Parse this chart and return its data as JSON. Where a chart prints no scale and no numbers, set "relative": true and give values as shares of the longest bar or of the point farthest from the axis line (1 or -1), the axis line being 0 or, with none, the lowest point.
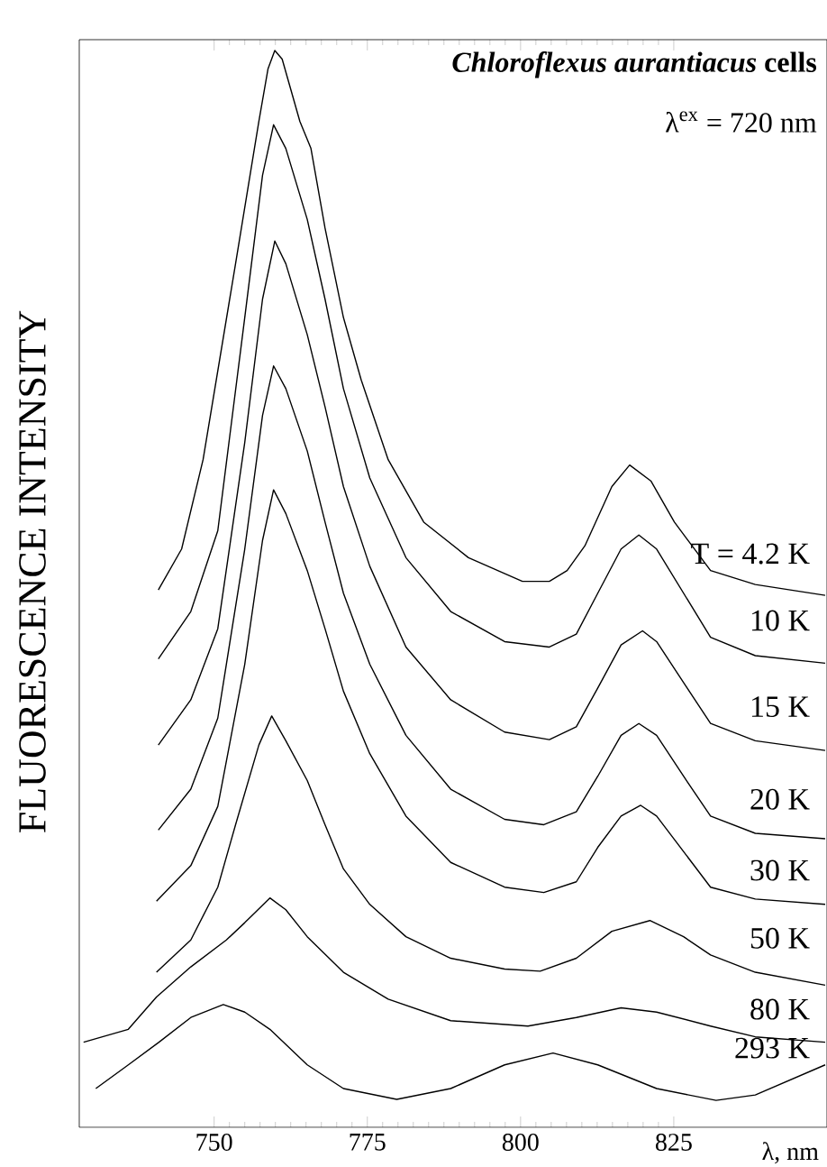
{
  "chart_data": {
    "type": "line",
    "relative": true,
    "xlabel": "λ, nm",
    "ylabel": "FLUORESCENCE INTENSITY",
    "xlim": [
      728,
      850
    ],
    "xticks": [
      750,
      775,
      800,
      825
    ],
    "annotations": [
      "*Chloroflexus aurantiacus* cells",
      "λ$^{ex}$ = 720 nm"
    ],
    "series": [
      {
        "name": "T = 4.2 K",
        "color": "#000000",
        "x": [
          740.9,
          744.7,
          748.2,
          753.5,
          757.3,
          758.8,
          759.9,
          761.1,
          764.0,
          765.8,
          768.1,
          771.1,
          774.0,
          778.4,
          784.2,
          791.5,
          800.3,
          804.7,
          807.6,
          810.5,
          814.9,
          817.8,
          821.3,
          825.1,
          831.0,
          838.3,
          849.7
        ],
        "values": [
          0.499,
          0.537,
          0.62,
          0.802,
          0.934,
          0.983,
          1.0,
          0.992,
          0.934,
          0.909,
          0.835,
          0.752,
          0.694,
          0.62,
          0.562,
          0.529,
          0.507,
          0.507,
          0.517,
          0.54,
          0.595,
          0.615,
          0.6,
          0.562,
          0.517,
          0.504,
          0.494
        ]
      },
      {
        "name": "10 K",
        "color": "#000000",
        "x": [
          740.9,
          746.2,
          750.6,
          755.0,
          757.9,
          759.7,
          761.7,
          765.2,
          768.1,
          771.1,
          775.4,
          781.3,
          788.6,
          797.4,
          804.7,
          809.1,
          812.6,
          816.4,
          819.3,
          822.2,
          826.6,
          831.0,
          838.3,
          849.7
        ],
        "values": [
          0.435,
          0.479,
          0.554,
          0.752,
          0.884,
          0.931,
          0.909,
          0.843,
          0.769,
          0.686,
          0.603,
          0.529,
          0.479,
          0.451,
          0.446,
          0.458,
          0.496,
          0.537,
          0.55,
          0.537,
          0.496,
          0.455,
          0.438,
          0.431
        ]
      },
      {
        "name": "15 K",
        "color": "#000000",
        "x": [
          740.9,
          746.2,
          750.6,
          755.0,
          757.9,
          759.9,
          761.7,
          765.2,
          768.1,
          771.1,
          775.4,
          781.3,
          788.6,
          797.4,
          804.7,
          809.1,
          812.6,
          816.4,
          819.9,
          822.2,
          826.6,
          831.0,
          838.3,
          849.7
        ],
        "values": [
          0.355,
          0.397,
          0.463,
          0.636,
          0.769,
          0.823,
          0.802,
          0.736,
          0.669,
          0.595,
          0.521,
          0.446,
          0.397,
          0.367,
          0.36,
          0.372,
          0.408,
          0.448,
          0.461,
          0.451,
          0.413,
          0.375,
          0.359,
          0.35
        ]
      },
      {
        "name": "20 K",
        "color": "#000000",
        "x": [
          740.9,
          746.2,
          750.6,
          755.0,
          757.9,
          759.7,
          761.7,
          765.2,
          768.1,
          771.1,
          775.4,
          781.3,
          788.6,
          797.4,
          803.8,
          809.1,
          812.6,
          816.4,
          819.3,
          822.2,
          826.6,
          831.0,
          838.3,
          849.7
        ],
        "values": [
          0.276,
          0.314,
          0.38,
          0.537,
          0.661,
          0.707,
          0.686,
          0.628,
          0.562,
          0.496,
          0.43,
          0.364,
          0.314,
          0.286,
          0.281,
          0.293,
          0.326,
          0.364,
          0.375,
          0.364,
          0.326,
          0.289,
          0.273,
          0.268
        ]
      },
      {
        "name": "30 K",
        "color": "#000000",
        "x": [
          740.6,
          746.2,
          750.6,
          755.0,
          757.9,
          759.7,
          761.7,
          765.2,
          768.1,
          771.1,
          775.4,
          781.3,
          788.6,
          797.4,
          803.8,
          809.1,
          812.6,
          816.4,
          819.6,
          822.2,
          826.6,
          831.0,
          838.3,
          849.7
        ],
        "values": [
          0.21,
          0.243,
          0.298,
          0.43,
          0.545,
          0.592,
          0.57,
          0.517,
          0.463,
          0.405,
          0.347,
          0.289,
          0.246,
          0.223,
          0.218,
          0.228,
          0.26,
          0.289,
          0.299,
          0.289,
          0.256,
          0.223,
          0.212,
          0.207
        ]
      },
      {
        "name": "50 K",
        "color": "#000000",
        "x": [
          740.6,
          746.2,
          750.6,
          753.5,
          757.3,
          759.4,
          761.7,
          765.2,
          768.1,
          771.1,
          775.4,
          781.3,
          788.6,
          797.4,
          803.2,
          809.1,
          814.9,
          821.1,
          826.6,
          831.0,
          838.3,
          849.7
        ],
        "values": [
          0.144,
          0.174,
          0.223,
          0.281,
          0.355,
          0.382,
          0.359,
          0.322,
          0.281,
          0.24,
          0.207,
          0.177,
          0.157,
          0.147,
          0.145,
          0.157,
          0.182,
          0.192,
          0.177,
          0.16,
          0.144,
          0.132
        ]
      },
      {
        "name": "80 K",
        "color": "#000000",
        "x": [
          728.7,
          736.0,
          740.6,
          746.2,
          752.0,
          755.0,
          759.1,
          761.7,
          765.2,
          771.1,
          778.4,
          788.6,
          801.2,
          809.1,
          816.4,
          822.2,
          831.0,
          838.3,
          849.7
        ],
        "values": [
          0.079,
          0.091,
          0.121,
          0.149,
          0.174,
          0.19,
          0.213,
          0.202,
          0.177,
          0.144,
          0.119,
          0.099,
          0.094,
          0.102,
          0.111,
          0.107,
          0.094,
          0.084,
          0.079
        ]
      },
      {
        "name": "293 K",
        "color": "#000000",
        "x": [
          730.7,
          736.0,
          741.0,
          746.2,
          751.5,
          755.0,
          759.1,
          765.2,
          771.1,
          779.8,
          788.6,
          797.4,
          805.3,
          812.6,
          822.2,
          831.9,
          838.3,
          849.7
        ],
        "values": [
          0.036,
          0.058,
          0.079,
          0.102,
          0.114,
          0.107,
          0.091,
          0.058,
          0.036,
          0.026,
          0.036,
          0.058,
          0.069,
          0.058,
          0.036,
          0.025,
          0.03,
          0.058
        ]
      }
    ]
  }
}
